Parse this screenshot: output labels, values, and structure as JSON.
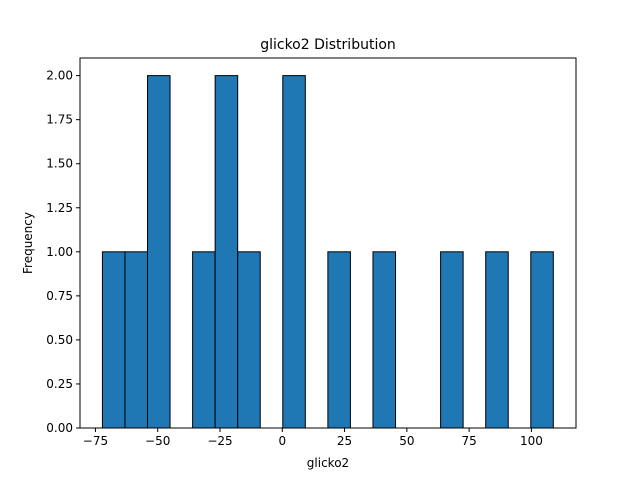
{
  "chart_data": {
    "type": "bar",
    "title": "glicko2 Distribution",
    "xlabel": "glicko2",
    "ylabel": "Frequency",
    "xlim": [
      -81.2,
      117.9
    ],
    "ylim": [
      0,
      2.1
    ],
    "bins": 20,
    "bin_start": -72.2,
    "bin_width": 9.05,
    "counts": [
      1,
      1,
      2,
      0,
      1,
      2,
      1,
      0,
      2,
      0,
      1,
      0,
      1,
      0,
      0,
      1,
      0,
      1,
      0,
      1
    ],
    "x_ticks": [
      -75,
      -50,
      -25,
      0,
      25,
      50,
      75,
      100
    ],
    "x_tick_labels": [
      "−75",
      "−50",
      "−25",
      "0",
      "25",
      "50",
      "75",
      "100"
    ],
    "y_ticks": [
      0,
      0.25,
      0.5,
      0.75,
      1.0,
      1.25,
      1.5,
      1.75,
      2.0
    ],
    "y_tick_labels": [
      "0.00",
      "0.25",
      "0.50",
      "0.75",
      "1.00",
      "1.25",
      "1.50",
      "1.75",
      "2.00"
    ],
    "bar_color": "#1f77b4",
    "edge_color": "#000000",
    "grid": false,
    "legend": false
  }
}
